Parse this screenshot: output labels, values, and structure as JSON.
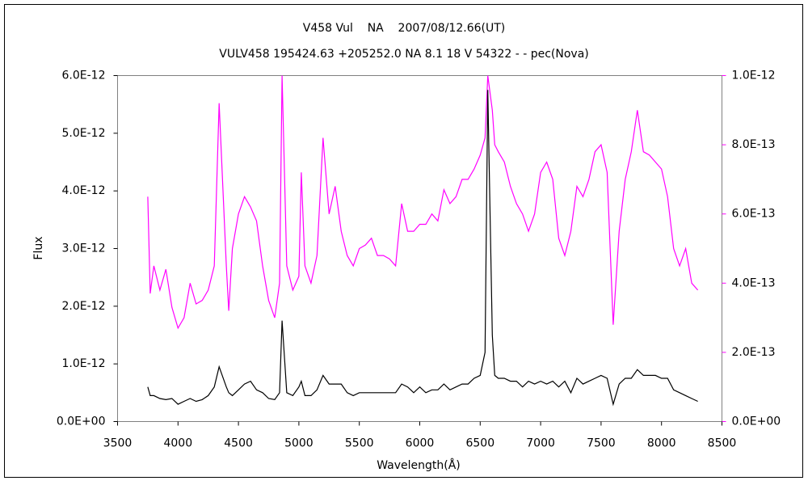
{
  "chart_data": {
    "type": "line",
    "title": "V458 Vul    NA    2007/08/12.66(UT)",
    "subtitle": "VULV458 195424.63 +205252.0 NA 8.1 18 V 54322 - - pec(Nova)",
    "x_label": "Wavelength(Å)",
    "y_label": "Flux",
    "xlim": [
      3500,
      8500
    ],
    "xticks": [
      3500,
      4000,
      4500,
      5000,
      5500,
      6000,
      6500,
      7000,
      7500,
      8000,
      8500
    ],
    "ylim": [
      0,
      6e-12
    ],
    "yticks": [
      {
        "value": 0,
        "label": "0.0E+00"
      },
      {
        "value": 1e-12,
        "label": "1.0E-12"
      },
      {
        "value": 2e-12,
        "label": "2.0E-12"
      },
      {
        "value": 3e-12,
        "label": "3.0E-12"
      },
      {
        "value": 4e-12,
        "label": "4.0E-12"
      },
      {
        "value": 5e-12,
        "label": "5.0E-12"
      },
      {
        "value": 6e-12,
        "label": "6.0E-12"
      }
    ],
    "y2lim": [
      0,
      1e-12
    ],
    "y2ticks": [
      {
        "value": 0,
        "label": "0.0E+00"
      },
      {
        "value": 2e-13,
        "label": "2.0E-13"
      },
      {
        "value": 4e-13,
        "label": "4.0E-13"
      },
      {
        "value": 6e-13,
        "label": "6.0E-13"
      },
      {
        "value": 8e-13,
        "label": "8.0E-13"
      },
      {
        "value": 1e-12,
        "label": "1.0E-12"
      }
    ],
    "x": [
      3750,
      3770,
      3800,
      3850,
      3900,
      3950,
      4000,
      4050,
      4100,
      4150,
      4200,
      4250,
      4300,
      4340,
      4400,
      4420,
      4450,
      4500,
      4550,
      4600,
      4650,
      4700,
      4750,
      4800,
      4840,
      4861,
      4900,
      4950,
      5000,
      5020,
      5050,
      5100,
      5150,
      5200,
      5250,
      5300,
      5350,
      5400,
      5450,
      5500,
      5550,
      5600,
      5650,
      5700,
      5750,
      5800,
      5850,
      5900,
      5950,
      6000,
      6050,
      6100,
      6150,
      6200,
      6250,
      6300,
      6350,
      6400,
      6450,
      6500,
      6540,
      6563,
      6600,
      6620,
      6650,
      6700,
      6750,
      6800,
      6850,
      6900,
      6950,
      7000,
      7050,
      7100,
      7150,
      7200,
      7250,
      7300,
      7350,
      7400,
      7450,
      7500,
      7550,
      7600,
      7650,
      7700,
      7750,
      7800,
      7850,
      7900,
      7950,
      8000,
      8050,
      8100,
      8150,
      8200,
      8250,
      8300
    ],
    "series": [
      {
        "color": "#000000",
        "values": [
          6e-13,
          4.5e-13,
          4.5e-13,
          4e-13,
          3.8e-13,
          4e-13,
          3e-13,
          3.5e-13,
          4e-13,
          3.5e-13,
          3.8e-13,
          4.5e-13,
          6e-13,
          9.5e-13,
          6e-13,
          5e-13,
          4.5e-13,
          5.5e-13,
          6.5e-13,
          7e-13,
          5.5e-13,
          5e-13,
          4e-13,
          3.8e-13,
          5e-13,
          1.75e-12,
          5e-13,
          4.5e-13,
          6e-13,
          7e-13,
          4.5e-13,
          4.5e-13,
          5.5e-13,
          8e-13,
          6.5e-13,
          6.5e-13,
          6.5e-13,
          5e-13,
          4.5e-13,
          5e-13,
          5e-13,
          5e-13,
          5e-13,
          5e-13,
          5e-13,
          5e-13,
          6.5e-13,
          6e-13,
          5e-13,
          6e-13,
          5e-13,
          5.5e-13,
          5.5e-13,
          6.5e-13,
          5.5e-13,
          6e-13,
          6.5e-13,
          6.5e-13,
          7.5e-13,
          8e-13,
          1.2e-12,
          5.75e-12,
          1.5e-12,
          8e-13,
          7.5e-13,
          7.5e-13,
          7e-13,
          7e-13,
          6e-13,
          7e-13,
          6.5e-13,
          7e-13,
          6.5e-13,
          7e-13,
          6e-13,
          7e-13,
          5e-13,
          7.5e-13,
          6.5e-13,
          7e-13,
          7.5e-13,
          8e-13,
          7.5e-13,
          3e-13,
          6.5e-13,
          7.5e-13,
          7.5e-13,
          9e-13,
          8e-13,
          8e-13,
          8e-13,
          7.5e-13,
          7.5e-13,
          5.5e-13,
          5e-13,
          4.5e-13,
          4e-13,
          3.5e-13
        ]
      },
      {
        "color": "#ff00ff",
        "axis": "y2",
        "values": [
          6.5e-13,
          3.7e-13,
          4.5e-13,
          3.8e-13,
          4.4e-13,
          3.3e-13,
          2.7e-13,
          3e-13,
          4e-13,
          3.4e-13,
          3.5e-13,
          3.8e-13,
          4.5e-13,
          9.2e-13,
          4.5e-13,
          3.2e-13,
          5e-13,
          6e-13,
          6.5e-13,
          6.2e-13,
          5.8e-13,
          4.5e-13,
          3.5e-13,
          3e-13,
          4e-13,
          1e-12,
          4.5e-13,
          3.8e-13,
          4.2e-13,
          7.2e-13,
          4.5e-13,
          4e-13,
          4.8e-13,
          8.2e-13,
          6e-13,
          6.8e-13,
          5.5e-13,
          4.8e-13,
          4.5e-13,
          5e-13,
          5.1e-13,
          5.3e-13,
          4.8e-13,
          4.8e-13,
          4.7e-13,
          4.5e-13,
          6.3e-13,
          5.5e-13,
          5.5e-13,
          5.7e-13,
          5.7e-13,
          6e-13,
          5.8e-13,
          6.7e-13,
          6.3e-13,
          6.5e-13,
          7e-13,
          7e-13,
          7.3e-13,
          7.7e-13,
          8.2e-13,
          1e-12,
          9e-13,
          8e-13,
          7.8e-13,
          7.5e-13,
          6.8e-13,
          6.3e-13,
          6e-13,
          5.5e-13,
          6e-13,
          7.2e-13,
          7.5e-13,
          7e-13,
          5.3e-13,
          4.8e-13,
          5.5e-13,
          6.8e-13,
          6.5e-13,
          7e-13,
          7.8e-13,
          8e-13,
          7.2e-13,
          2.8e-13,
          5.5e-13,
          7e-13,
          7.8e-13,
          9e-13,
          7.8e-13,
          7.7e-13,
          7.5e-13,
          7.3e-13,
          6.5e-13,
          5e-13,
          4.5e-13,
          5e-13,
          4e-13,
          3.8e-13
        ]
      }
    ]
  }
}
